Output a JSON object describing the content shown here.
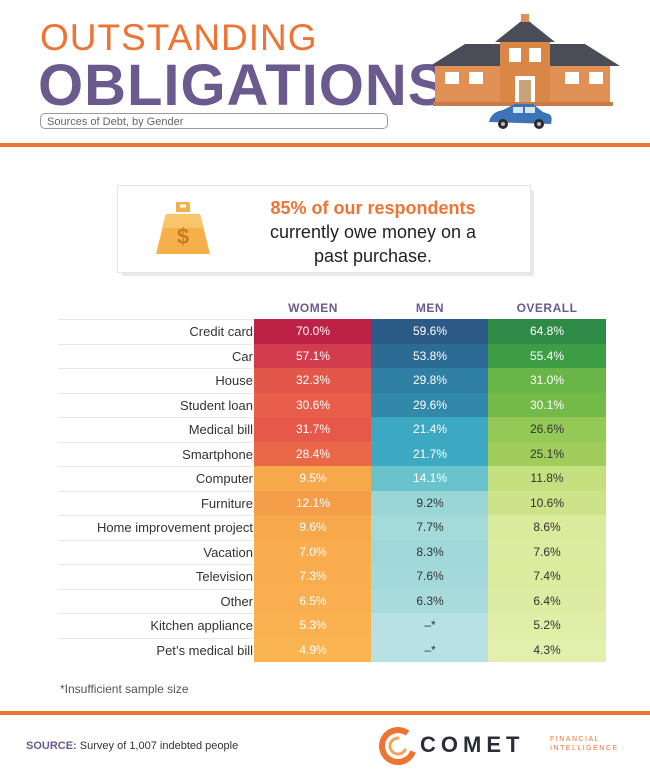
{
  "header": {
    "title_line1": "OUTSTANDING",
    "title_line2": "OBLIGATIONS",
    "subtitle": "Sources of Debt, by Gender"
  },
  "callout": {
    "highlight": "85% of our respondents",
    "line2": "currently owe money on a",
    "line3": "past purchase."
  },
  "footnote": "*Insufficient sample size",
  "source": {
    "label": "SOURCE:",
    "text": "Survey of 1,007 indebted people"
  },
  "logo": {
    "name": "COMET",
    "sub1": "FINANCIAL",
    "sub2": "INTELLIGENCE"
  },
  "colors": {
    "orange": "#ee7434",
    "purple": "#6b5a8e"
  },
  "chart_data": {
    "type": "table",
    "title": "Sources of Debt, by Gender",
    "columns": [
      "WOMEN",
      "MEN",
      "OVERALL"
    ],
    "rows": [
      {
        "label": "Credit card",
        "women": "70.0%",
        "men": "59.6%",
        "overall": "64.8%",
        "colors": [
          "#be2146",
          "#2b5a86",
          "#2e8a47"
        ],
        "dark": [
          true,
          true,
          true
        ]
      },
      {
        "label": "Car",
        "women": "57.1%",
        "men": "53.8%",
        "overall": "55.4%",
        "colors": [
          "#d23c4c",
          "#2c6b94",
          "#3c9d45"
        ],
        "dark": [
          true,
          true,
          true
        ]
      },
      {
        "label": "House",
        "women": "32.3%",
        "men": "29.8%",
        "overall": "31.0%",
        "colors": [
          "#e3574b",
          "#2f7ea4",
          "#6ab547"
        ],
        "dark": [
          true,
          true,
          true
        ]
      },
      {
        "label": "Student loan",
        "women": "30.6%",
        "men": "29.6%",
        "overall": "30.1%",
        "colors": [
          "#e85e4a",
          "#3188a9",
          "#73ba49"
        ],
        "dark": [
          true,
          true,
          true
        ]
      },
      {
        "label": "Medical bill",
        "women": "31.7%",
        "men": "21.4%",
        "overall": "26.6%",
        "colors": [
          "#e6594a",
          "#3ca8c1",
          "#94c857"
        ],
        "dark": [
          true,
          true,
          false
        ]
      },
      {
        "label": "Smartphone",
        "women": "28.4%",
        "men": "21.7%",
        "overall": "25.1%",
        "colors": [
          "#ea6848",
          "#3ea9c2",
          "#a0cd5b"
        ],
        "dark": [
          true,
          true,
          false
        ]
      },
      {
        "label": "Computer",
        "women": "9.5%",
        "men": "14.1%",
        "overall": "11.8%",
        "colors": [
          "#f7a84b",
          "#68c3cd",
          "#c5e07f"
        ],
        "dark": [
          true,
          true,
          false
        ]
      },
      {
        "label": "Furniture",
        "women": "12.1%",
        "men": "9.2%",
        "overall": "10.6%",
        "colors": [
          "#f49e4a",
          "#9bd6d6",
          "#cce38a"
        ],
        "dark": [
          true,
          false,
          false
        ]
      },
      {
        "label": "Home improvement project",
        "women": "9.6%",
        "men": "7.7%",
        "overall": "8.6%",
        "colors": [
          "#f7a84b",
          "#a5dadb",
          "#dbeb9d"
        ],
        "dark": [
          true,
          false,
          false
        ]
      },
      {
        "label": "Vacation",
        "women": "7.0%",
        "men": "8.3%",
        "overall": "7.6%",
        "colors": [
          "#f9ad4e",
          "#a0d8d9",
          "#dcebA0"
        ],
        "dark": [
          true,
          false,
          false
        ]
      },
      {
        "label": "Television",
        "women": "7.3%",
        "men": "7.6%",
        "overall": "7.4%",
        "colors": [
          "#f9ad4e",
          "#a3d9da",
          "#dcec9f"
        ],
        "dark": [
          true,
          false,
          false
        ]
      },
      {
        "label": "Other",
        "women": "6.5%",
        "men": "6.3%",
        "overall": "6.4%",
        "colors": [
          "#f9ae4f",
          "#a8dbdc",
          "#deeca3"
        ],
        "dark": [
          true,
          false,
          false
        ]
      },
      {
        "label": "Kitchen appliance",
        "women": "5.3%",
        "men": "–*",
        "overall": "5.2%",
        "colors": [
          "#fab251",
          "#b7e1e2",
          "#e1eea8"
        ],
        "dark": [
          true,
          false,
          false
        ]
      },
      {
        "label": "Pet’s medical bill",
        "women": "4.9%",
        "men": "–*",
        "overall": "4.3%",
        "colors": [
          "#fab452",
          "#b7e1e2",
          "#e3efac"
        ],
        "dark": [
          true,
          false,
          false
        ]
      }
    ]
  }
}
